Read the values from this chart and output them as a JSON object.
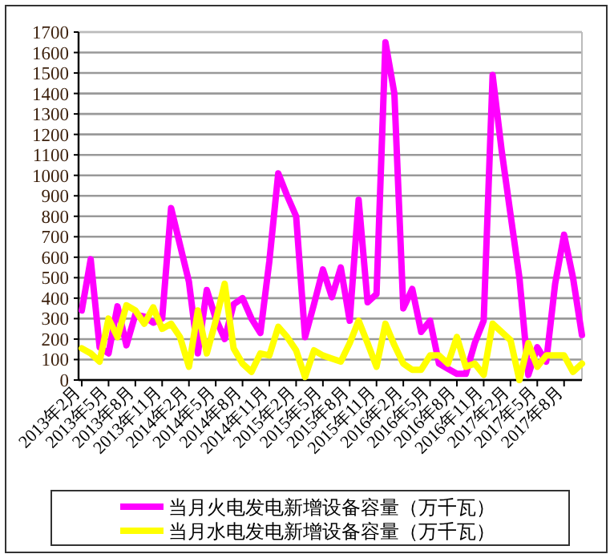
{
  "chart_data": {
    "type": "line",
    "categories": [
      "2013年2月",
      null,
      null,
      "2013年5月",
      null,
      null,
      "2013年8月",
      null,
      null,
      "2013年11月",
      null,
      null,
      "2014年2月",
      null,
      null,
      "2014年5月",
      null,
      null,
      "2014年8月",
      null,
      null,
      "2014年11月",
      null,
      null,
      "2015年2月",
      null,
      null,
      "2015年5月",
      null,
      null,
      "2015年8月",
      null,
      null,
      "2015年11月",
      null,
      null,
      "2016年2月",
      null,
      null,
      "2016年5月",
      null,
      null,
      "2016年8月",
      null,
      null,
      "2016年11月",
      null,
      null,
      "2017年2月",
      null,
      null,
      "2017年5月",
      null,
      null,
      "2017年8月",
      null,
      null
    ],
    "series": [
      {
        "name": "当月火电发电新增设备容量（万千瓦）",
        "color": "#ff00ff",
        "values": [
          340,
          590,
          160,
          130,
          360,
          170,
          320,
          310,
          280,
          300,
          840,
          660,
          480,
          130,
          440,
          300,
          200,
          370,
          400,
          300,
          230,
          580,
          1010,
          900,
          800,
          210,
          370,
          540,
          405,
          550,
          290,
          880,
          380,
          420,
          1650,
          1400,
          350,
          445,
          235,
          290,
          80,
          55,
          30,
          30,
          180,
          290,
          1490,
          1125,
          810,
          500,
          25,
          160,
          90,
          470,
          710,
          500,
          220
        ]
      },
      {
        "name": "当月水电发电新增设备容量（万千瓦）",
        "color": "#ffff00",
        "values": [
          155,
          130,
          90,
          300,
          210,
          365,
          340,
          275,
          355,
          250,
          275,
          210,
          65,
          340,
          130,
          290,
          470,
          155,
          80,
          40,
          130,
          120,
          260,
          210,
          145,
          15,
          145,
          120,
          105,
          90,
          180,
          290,
          180,
          65,
          275,
          170,
          80,
          50,
          50,
          120,
          120,
          80,
          210,
          65,
          80,
          25,
          275,
          235,
          195,
          0,
          180,
          65,
          120,
          120,
          120,
          40,
          80
        ]
      }
    ],
    "ylim": [
      0,
      1700
    ],
    "yticks": [
      0,
      100,
      200,
      300,
      400,
      500,
      600,
      700,
      800,
      900,
      1000,
      1100,
      1200,
      1300,
      1400,
      1500,
      1600,
      1700
    ],
    "grid": "y",
    "legend": "bottom",
    "marker": "none",
    "line_style": "solid"
  }
}
